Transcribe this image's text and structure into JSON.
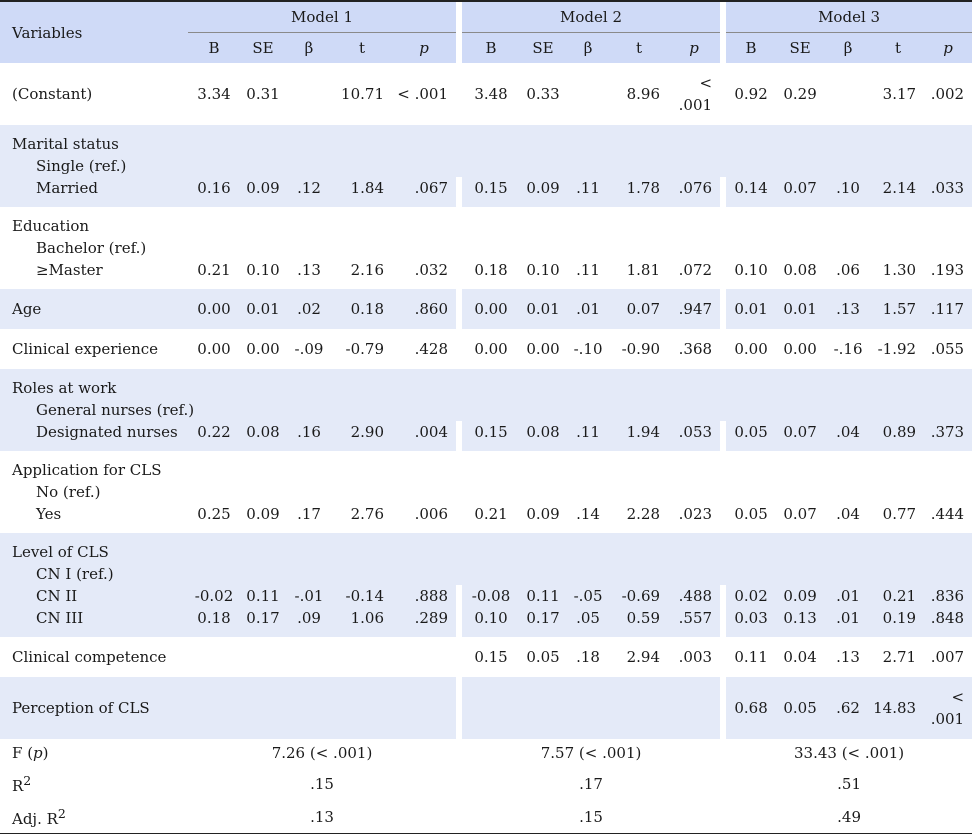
{
  "header": {
    "variables": "Variables",
    "models": [
      "Model 1",
      "Model 2",
      "Model 3"
    ],
    "stats": [
      "B",
      "SE",
      "β",
      "t",
      "p"
    ]
  },
  "rows": {
    "constant": {
      "label": "(Constant)",
      "m1": [
        "3.34",
        "0.31",
        "",
        "10.71",
        "< .001"
      ],
      "m2": [
        "3.48",
        "0.33",
        "",
        "8.96",
        "< .001"
      ],
      "m3": [
        "0.92",
        "0.29",
        "",
        "3.17",
        ".002"
      ]
    },
    "marital": {
      "label": "Marital status",
      "ref": "Single (ref.)",
      "sub": "Married",
      "m1": [
        "0.16",
        "0.09",
        ".12",
        "1.84",
        ".067"
      ],
      "m2": [
        "0.15",
        "0.09",
        ".11",
        "1.78",
        ".076"
      ],
      "m3": [
        "0.14",
        "0.07",
        ".10",
        "2.14",
        ".033"
      ]
    },
    "education": {
      "label": "Education",
      "ref": "Bachelor (ref.)",
      "sub": "≥Master",
      "m1": [
        "0.21",
        "0.10",
        ".13",
        "2.16",
        ".032"
      ],
      "m2": [
        "0.18",
        "0.10",
        ".11",
        "1.81",
        ".072"
      ],
      "m3": [
        "0.10",
        "0.08",
        ".06",
        "1.30",
        ".193"
      ]
    },
    "age": {
      "label": "Age",
      "m1": [
        "0.00",
        "0.01",
        ".02",
        "0.18",
        ".860"
      ],
      "m2": [
        "0.00",
        "0.01",
        ".01",
        "0.07",
        ".947"
      ],
      "m3": [
        "0.01",
        "0.01",
        ".13",
        "1.57",
        ".117"
      ]
    },
    "clinical_experience": {
      "label": "Clinical experience",
      "m1": [
        "0.00",
        "0.00",
        "-.09",
        "-0.79",
        ".428"
      ],
      "m2": [
        "0.00",
        "0.00",
        "-.10",
        "-0.90",
        ".368"
      ],
      "m3": [
        "0.00",
        "0.00",
        "-.16",
        "-1.92",
        ".055"
      ]
    },
    "roles": {
      "label": "Roles at work",
      "ref": "General nurses (ref.)",
      "sub": "Designated nurses",
      "m1": [
        "0.22",
        "0.08",
        ".16",
        "2.90",
        ".004"
      ],
      "m2": [
        "0.15",
        "0.08",
        ".11",
        "1.94",
        ".053"
      ],
      "m3": [
        "0.05",
        "0.07",
        ".04",
        "0.89",
        ".373"
      ]
    },
    "application": {
      "label": "Application for CLS",
      "ref": "No (ref.)",
      "sub": "Yes",
      "m1": [
        "0.25",
        "0.09",
        ".17",
        "2.76",
        ".006"
      ],
      "m2": [
        "0.21",
        "0.09",
        ".14",
        "2.28",
        ".023"
      ],
      "m3": [
        "0.05",
        "0.07",
        ".04",
        "0.77",
        ".444"
      ]
    },
    "level": {
      "label": "Level of CLS",
      "ref": "CN I (ref.)",
      "sub1": "CN II",
      "a1": [
        "-0.02",
        "0.11",
        "-.01",
        "-0.14",
        ".888"
      ],
      "a2": [
        "-0.08",
        "0.11",
        "-.05",
        "-0.69",
        ".488"
      ],
      "a3": [
        "0.02",
        "0.09",
        ".01",
        "0.21",
        ".836"
      ],
      "sub2": "CN III",
      "b1": [
        "0.18",
        "0.17",
        ".09",
        "1.06",
        ".289"
      ],
      "b2": [
        "0.10",
        "0.17",
        ".05",
        "0.59",
        ".557"
      ],
      "b3": [
        "0.03",
        "0.13",
        ".01",
        "0.19",
        ".848"
      ]
    },
    "competence": {
      "label": "Clinical competence",
      "m1": [
        "",
        "",
        "",
        "",
        ""
      ],
      "m2": [
        "0.15",
        "0.05",
        ".18",
        "2.94",
        ".003"
      ],
      "m3": [
        "0.11",
        "0.04",
        ".13",
        "2.71",
        ".007"
      ]
    },
    "perception": {
      "label": "Perception of CLS",
      "m1": [
        "",
        "",
        "",
        "",
        ""
      ],
      "m2": [
        "",
        "",
        "",
        "",
        ""
      ],
      "m3": [
        "0.68",
        "0.05",
        ".62",
        "14.83",
        "< .001"
      ]
    }
  },
  "fit": {
    "f_label": "F",
    "f_p": "p",
    "f": [
      "7.26 (< .001)",
      "7.57 (< .001)",
      "33.43 (< .001)"
    ],
    "r2_label": "R",
    "r2_sup": "2",
    "r2": [
      ".15",
      ".17",
      ".51"
    ],
    "adj_label": "Adj. R",
    "adj_sup": "2",
    "adj": [
      ".13",
      ".15",
      ".49"
    ]
  }
}
